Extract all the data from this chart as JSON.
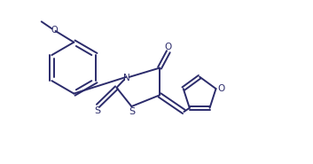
{
  "bg_color": "#ffffff",
  "line_color": "#2b2b6b",
  "line_width": 1.4,
  "fig_width": 3.53,
  "fig_height": 1.85,
  "dpi": 100,
  "xlim": [
    0,
    10
  ],
  "ylim": [
    0,
    5.2
  ]
}
